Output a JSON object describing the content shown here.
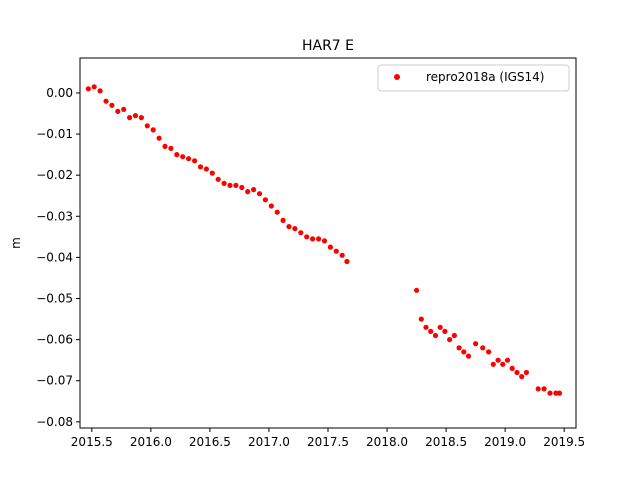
{
  "chart_data": {
    "type": "scatter",
    "title": "HAR7 E",
    "xlabel": "",
    "ylabel": "m",
    "xlim": [
      2015.4,
      2019.6
    ],
    "ylim": [
      -0.0815,
      0.0085
    ],
    "xticks": [
      2015.5,
      2016.0,
      2016.5,
      2017.0,
      2017.5,
      2018.0,
      2018.5,
      2019.0,
      2019.5
    ],
    "xtick_labels": [
      "2015.5",
      "2016.0",
      "2016.5",
      "2017.0",
      "2017.5",
      "2018.0",
      "2018.5",
      "2019.0",
      "2019.5"
    ],
    "yticks": [
      0.0,
      -0.01,
      -0.02,
      -0.03,
      -0.04,
      -0.05,
      -0.06,
      -0.07,
      -0.08
    ],
    "ytick_labels": [
      "0.00",
      "−0.01",
      "−0.02",
      "−0.03",
      "−0.04",
      "−0.05",
      "−0.06",
      "−0.07",
      "−0.08"
    ],
    "grid": false,
    "legend_position": "upper-right",
    "series": [
      {
        "name": "repro2018a (IGS14)",
        "color": "#ff0000",
        "marker": "circle",
        "x": [
          2015.47,
          2015.52,
          2015.57,
          2015.62,
          2015.67,
          2015.72,
          2015.77,
          2015.82,
          2015.87,
          2015.92,
          2015.97,
          2016.02,
          2016.07,
          2016.12,
          2016.17,
          2016.22,
          2016.27,
          2016.32,
          2016.37,
          2016.42,
          2016.47,
          2016.52,
          2016.57,
          2016.62,
          2016.67,
          2016.72,
          2016.77,
          2016.82,
          2016.87,
          2016.92,
          2016.97,
          2017.02,
          2017.07,
          2017.12,
          2017.17,
          2017.22,
          2017.27,
          2017.32,
          2017.37,
          2017.42,
          2017.47,
          2017.52,
          2017.57,
          2017.62,
          2017.66,
          2018.25,
          2018.29,
          2018.33,
          2018.37,
          2018.41,
          2018.45,
          2018.49,
          2018.53,
          2018.57,
          2018.61,
          2018.65,
          2018.69,
          2018.75,
          2018.81,
          2018.86,
          2018.9,
          2018.94,
          2018.98,
          2019.02,
          2019.06,
          2019.1,
          2019.14,
          2019.18,
          2019.28,
          2019.33,
          2019.38,
          2019.43,
          2019.46
        ],
        "y": [
          0.001,
          0.0015,
          0.0005,
          -0.002,
          -0.003,
          -0.0045,
          -0.004,
          -0.006,
          -0.0055,
          -0.006,
          -0.008,
          -0.009,
          -0.011,
          -0.013,
          -0.0135,
          -0.015,
          -0.0155,
          -0.016,
          -0.0165,
          -0.018,
          -0.0185,
          -0.0195,
          -0.021,
          -0.022,
          -0.0225,
          -0.0225,
          -0.023,
          -0.024,
          -0.0235,
          -0.0245,
          -0.026,
          -0.0275,
          -0.029,
          -0.031,
          -0.0325,
          -0.033,
          -0.034,
          -0.035,
          -0.0355,
          -0.0355,
          -0.036,
          -0.0375,
          -0.0385,
          -0.0395,
          -0.041,
          -0.048,
          -0.055,
          -0.057,
          -0.058,
          -0.059,
          -0.057,
          -0.058,
          -0.06,
          -0.059,
          -0.062,
          -0.063,
          -0.064,
          -0.061,
          -0.062,
          -0.063,
          -0.066,
          -0.065,
          -0.066,
          -0.065,
          -0.067,
          -0.068,
          -0.069,
          -0.068,
          -0.072,
          -0.072,
          -0.073,
          -0.073,
          -0.073
        ]
      }
    ]
  }
}
